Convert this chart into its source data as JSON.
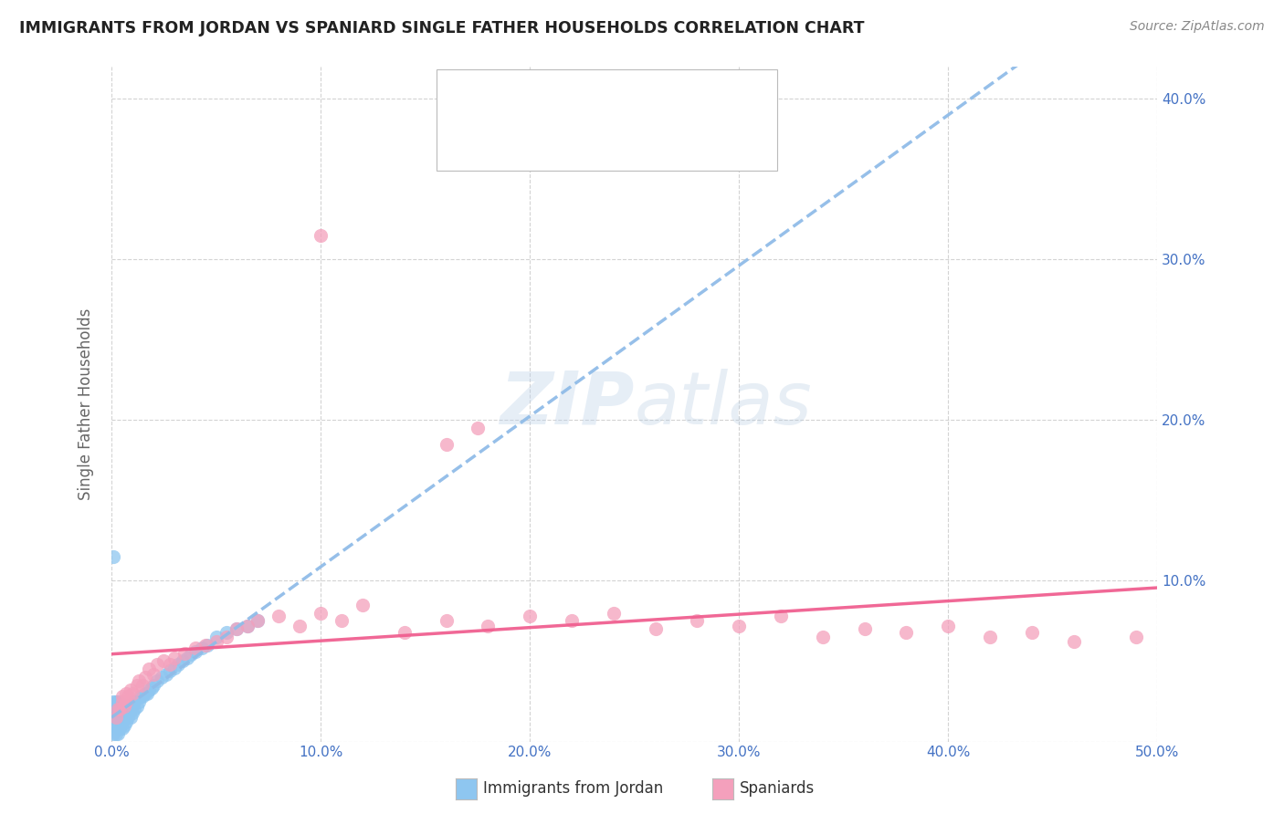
{
  "title": "IMMIGRANTS FROM JORDAN VS SPANIARD SINGLE FATHER HOUSEHOLDS CORRELATION CHART",
  "source": "Source: ZipAtlas.com",
  "ylabel_label": "Single Father Households",
  "xlim": [
    0.0,
    0.5
  ],
  "ylim": [
    0.0,
    0.42
  ],
  "xticks": [
    0.0,
    0.1,
    0.2,
    0.3,
    0.4,
    0.5
  ],
  "yticks": [
    0.0,
    0.1,
    0.2,
    0.3,
    0.4
  ],
  "xtick_labels": [
    "0.0%",
    "10.0%",
    "20.0%",
    "30.0%",
    "40.0%",
    "50.0%"
  ],
  "ytick_labels_left": [
    "",
    "",
    "",
    "",
    ""
  ],
  "ytick_labels_right": [
    "",
    "10.0%",
    "20.0%",
    "30.0%",
    "40.0%"
  ],
  "color_jordan": "#8ec6f0",
  "color_spaniard": "#f4a0bc",
  "color_jordan_line": "#90bce8",
  "color_spaniard_line": "#f06090",
  "color_text_blue": "#4472c4",
  "background_color": "#ffffff",
  "grid_color": "#c8c8c8",
  "jordan_x": [
    0.001,
    0.001,
    0.001,
    0.001,
    0.001,
    0.002,
    0.002,
    0.002,
    0.002,
    0.002,
    0.003,
    0.003,
    0.003,
    0.003,
    0.003,
    0.004,
    0.004,
    0.004,
    0.004,
    0.005,
    0.005,
    0.005,
    0.005,
    0.006,
    0.006,
    0.006,
    0.007,
    0.007,
    0.007,
    0.008,
    0.008,
    0.009,
    0.009,
    0.01,
    0.01,
    0.011,
    0.011,
    0.012,
    0.013,
    0.014,
    0.015,
    0.016,
    0.017,
    0.018,
    0.019,
    0.02,
    0.022,
    0.024,
    0.026,
    0.028,
    0.03,
    0.032,
    0.034,
    0.036,
    0.038,
    0.04,
    0.043,
    0.046,
    0.05,
    0.055,
    0.06,
    0.065,
    0.07,
    0.001
  ],
  "jordan_y": [
    0.005,
    0.01,
    0.015,
    0.02,
    0.025,
    0.005,
    0.01,
    0.015,
    0.02,
    0.025,
    0.005,
    0.01,
    0.015,
    0.02,
    0.025,
    0.008,
    0.013,
    0.018,
    0.023,
    0.008,
    0.013,
    0.018,
    0.023,
    0.01,
    0.015,
    0.02,
    0.012,
    0.017,
    0.022,
    0.015,
    0.02,
    0.015,
    0.02,
    0.018,
    0.023,
    0.02,
    0.025,
    0.022,
    0.025,
    0.028,
    0.028,
    0.03,
    0.03,
    0.032,
    0.033,
    0.035,
    0.038,
    0.04,
    0.042,
    0.044,
    0.046,
    0.048,
    0.05,
    0.052,
    0.054,
    0.056,
    0.058,
    0.06,
    0.065,
    0.068,
    0.07,
    0.072,
    0.075,
    0.115
  ],
  "spaniard_x": [
    0.002,
    0.003,
    0.004,
    0.005,
    0.005,
    0.006,
    0.007,
    0.007,
    0.008,
    0.009,
    0.01,
    0.012,
    0.013,
    0.015,
    0.016,
    0.018,
    0.02,
    0.022,
    0.025,
    0.028,
    0.03,
    0.035,
    0.04,
    0.045,
    0.05,
    0.055,
    0.06,
    0.065,
    0.07,
    0.08,
    0.09,
    0.1,
    0.11,
    0.12,
    0.14,
    0.16,
    0.18,
    0.2,
    0.22,
    0.24,
    0.26,
    0.28,
    0.3,
    0.32,
    0.34,
    0.36,
    0.38,
    0.4,
    0.42,
    0.44,
    0.46,
    0.49,
    0.16,
    0.175
  ],
  "spaniard_y": [
    0.015,
    0.02,
    0.02,
    0.025,
    0.028,
    0.022,
    0.025,
    0.03,
    0.028,
    0.032,
    0.03,
    0.035,
    0.038,
    0.035,
    0.04,
    0.045,
    0.042,
    0.048,
    0.05,
    0.048,
    0.052,
    0.055,
    0.058,
    0.06,
    0.062,
    0.065,
    0.07,
    0.072,
    0.075,
    0.078,
    0.072,
    0.08,
    0.075,
    0.085,
    0.068,
    0.075,
    0.072,
    0.078,
    0.075,
    0.08,
    0.07,
    0.075,
    0.072,
    0.078,
    0.065,
    0.07,
    0.068,
    0.072,
    0.065,
    0.068,
    0.062,
    0.065,
    0.185,
    0.195
  ],
  "spaniard_outlier_x": [
    0.1
  ],
  "spaniard_outlier_y": [
    0.315
  ]
}
